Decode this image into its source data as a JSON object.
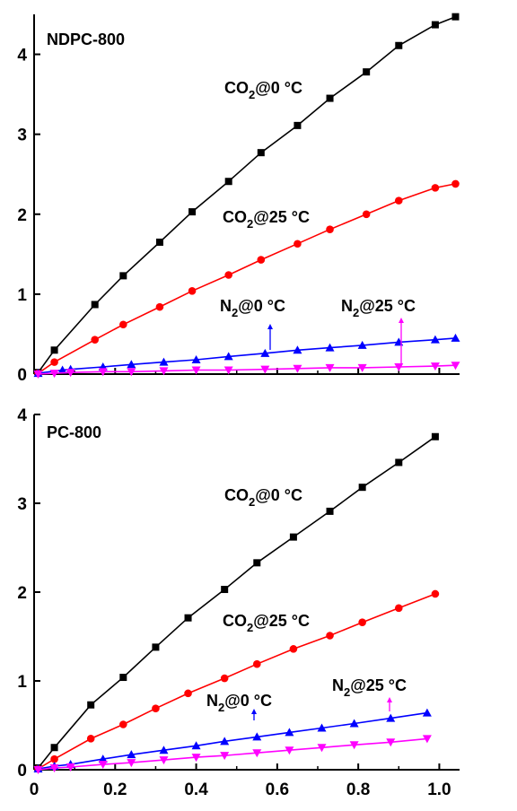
{
  "chart_data": [
    {
      "type": "line",
      "title": "NDPC-800",
      "xlabel": "",
      "ylabel": "",
      "xlim": [
        0,
        1.05
      ],
      "ylim": [
        0,
        4.5
      ],
      "y_ticks": [
        0,
        1,
        2,
        3,
        4
      ],
      "x_ticks": [
        0,
        0.2,
        0.4,
        0.6,
        0.8,
        1.0
      ],
      "grid": false,
      "series": [
        {
          "name": "CO2@0 °C",
          "color": "#000000",
          "marker": "square",
          "x": [
            0.01,
            0.05,
            0.15,
            0.22,
            0.31,
            0.39,
            0.48,
            0.56,
            0.65,
            0.73,
            0.82,
            0.9,
            0.99,
            1.04
          ],
          "y": [
            0.02,
            0.3,
            0.87,
            1.23,
            1.65,
            2.03,
            2.41,
            2.77,
            3.11,
            3.45,
            3.78,
            4.11,
            4.37,
            4.47
          ]
        },
        {
          "name": "CO2@25 °C",
          "color": "#ff0000",
          "marker": "circle",
          "x": [
            0.01,
            0.05,
            0.15,
            0.22,
            0.31,
            0.39,
            0.48,
            0.56,
            0.65,
            0.73,
            0.82,
            0.9,
            0.99,
            1.04
          ],
          "y": [
            0.01,
            0.15,
            0.43,
            0.62,
            0.84,
            1.04,
            1.24,
            1.43,
            1.63,
            1.81,
            2.0,
            2.17,
            2.33,
            2.38
          ]
        },
        {
          "name": "N2@0 °C",
          "color": "#0000ff",
          "marker": "triangle-up",
          "x": [
            0.01,
            0.07,
            0.09,
            0.17,
            0.24,
            0.32,
            0.4,
            0.48,
            0.57,
            0.65,
            0.73,
            0.81,
            0.9,
            0.99,
            1.04
          ],
          "y": [
            0.01,
            0.05,
            0.06,
            0.09,
            0.12,
            0.15,
            0.18,
            0.22,
            0.26,
            0.3,
            0.33,
            0.36,
            0.4,
            0.43,
            0.45
          ]
        },
        {
          "name": "N2@25 °C",
          "color": "#ff00ff",
          "marker": "triangle-down",
          "x": [
            0.01,
            0.05,
            0.09,
            0.17,
            0.24,
            0.32,
            0.4,
            0.48,
            0.57,
            0.65,
            0.73,
            0.81,
            0.9,
            0.99,
            1.04
          ],
          "y": [
            0.0,
            0.01,
            0.02,
            0.03,
            0.03,
            0.04,
            0.05,
            0.05,
            0.06,
            0.07,
            0.08,
            0.08,
            0.09,
            0.1,
            0.11
          ]
        }
      ],
      "annotations": [
        {
          "text": "CO",
          "sub": "2",
          "rest": "@0 °C",
          "series": "CO2@0 °C"
        },
        {
          "text": "CO",
          "sub": "2",
          "rest": "@25 °C",
          "series": "CO2@25 °C"
        },
        {
          "text": "N",
          "sub": "2",
          "rest": "@0 °C",
          "series": "N2@0 °C"
        },
        {
          "text": "N",
          "sub": "2",
          "rest": "@25 °C",
          "series": "N2@25 °C"
        }
      ]
    },
    {
      "type": "line",
      "title": "PC-800",
      "xlabel": "",
      "ylabel": "",
      "xlim": [
        0,
        1.05
      ],
      "ylim": [
        0,
        4
      ],
      "y_ticks": [
        0,
        1,
        2,
        3,
        4
      ],
      "x_ticks": [
        0,
        0.2,
        0.4,
        0.6,
        0.8,
        1.0
      ],
      "grid": false,
      "series": [
        {
          "name": "CO2@0 °C",
          "color": "#000000",
          "marker": "square",
          "x": [
            0.01,
            0.05,
            0.14,
            0.22,
            0.3,
            0.38,
            0.47,
            0.55,
            0.64,
            0.73,
            0.81,
            0.9,
            0.99
          ],
          "y": [
            0.02,
            0.25,
            0.73,
            1.04,
            1.38,
            1.71,
            2.03,
            2.33,
            2.62,
            2.91,
            3.18,
            3.46,
            3.75
          ]
        },
        {
          "name": "CO2@25 °C",
          "color": "#ff0000",
          "marker": "circle",
          "x": [
            0.01,
            0.05,
            0.14,
            0.22,
            0.3,
            0.38,
            0.47,
            0.55,
            0.64,
            0.73,
            0.81,
            0.9,
            0.99
          ],
          "y": [
            0.01,
            0.12,
            0.35,
            0.51,
            0.69,
            0.86,
            1.03,
            1.19,
            1.36,
            1.51,
            1.66,
            1.82,
            1.98
          ]
        },
        {
          "name": "N2@0 °C",
          "color": "#0000ff",
          "marker": "triangle-up",
          "x": [
            0.01,
            0.05,
            0.09,
            0.17,
            0.24,
            0.32,
            0.4,
            0.47,
            0.55,
            0.63,
            0.71,
            0.79,
            0.88,
            0.97
          ],
          "y": [
            0.01,
            0.04,
            0.06,
            0.12,
            0.17,
            0.22,
            0.27,
            0.32,
            0.37,
            0.42,
            0.47,
            0.52,
            0.58,
            0.64
          ]
        },
        {
          "name": "N2@25 °C",
          "color": "#ff00ff",
          "marker": "triangle-down",
          "x": [
            0.01,
            0.05,
            0.09,
            0.17,
            0.24,
            0.32,
            0.4,
            0.47,
            0.55,
            0.63,
            0.71,
            0.79,
            0.88,
            0.97
          ],
          "y": [
            0.0,
            0.02,
            0.03,
            0.06,
            0.08,
            0.11,
            0.14,
            0.16,
            0.19,
            0.22,
            0.25,
            0.28,
            0.31,
            0.35
          ]
        }
      ],
      "annotations": [
        {
          "text": "CO",
          "sub": "2",
          "rest": "@0 °C",
          "series": "CO2@0 °C"
        },
        {
          "text": "CO",
          "sub": "2",
          "rest": "@25 °C",
          "series": "CO2@25 °C"
        },
        {
          "text": "N",
          "sub": "2",
          "rest": "@0 °C",
          "series": "N2@0 °C"
        },
        {
          "text": "N",
          "sub": "2",
          "rest": "@25 °C",
          "series": "N2@25 °C"
        }
      ]
    }
  ]
}
